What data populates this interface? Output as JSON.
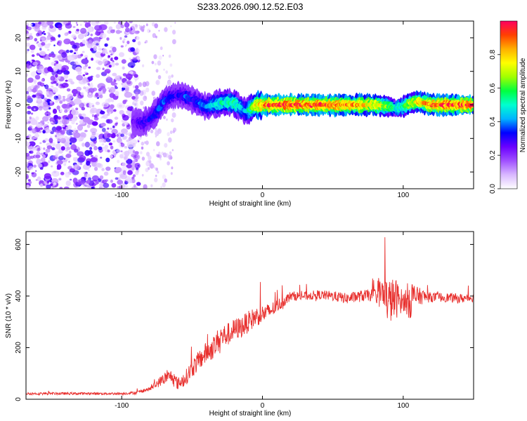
{
  "title": "S233.2026.090.12.52.E03",
  "chart_data": [
    {
      "type": "heatmap",
      "name": "spectrogram",
      "xlabel": "Height of straight line (km)",
      "ylabel": "Frequency (Hz)",
      "xlim": [
        -168,
        150
      ],
      "ylim": [
        -25,
        25
      ],
      "xticks": [
        "-100",
        "0",
        "100"
      ],
      "xtick_values": [
        -100,
        0,
        100
      ],
      "yticks": [
        "-20",
        "-10",
        "0",
        "10",
        "20"
      ],
      "ytick_values": [
        -20,
        -10,
        0,
        10,
        20
      ],
      "colorbar": {
        "label": "Normalized spectral amplitude",
        "range": [
          0,
          1
        ],
        "ticks": [
          "0.0",
          "0.2",
          "0.4",
          "0.6",
          "0.8"
        ],
        "tick_values": [
          0,
          0.2,
          0.4,
          0.6,
          0.8
        ],
        "colors": [
          "#ffffff",
          "#d9b8ff",
          "#a050ff",
          "#6a00ff",
          "#0000ff",
          "#00b4ff",
          "#00ffd0",
          "#00ff40",
          "#a0ff00",
          "#ffff00",
          "#ffb000",
          "#ff4000",
          "#ff0060"
        ]
      },
      "ridge": {
        "description": "frequency of dominant signal along height",
        "x": [
          -90,
          -85,
          -80,
          -75,
          -70,
          -65,
          -60,
          -55,
          -50,
          -45,
          -40,
          -35,
          -30,
          -25,
          -20,
          -15,
          -12,
          -8,
          -5,
          0,
          10,
          20,
          30,
          40,
          50,
          60,
          70,
          80,
          90,
          95,
          100,
          105,
          110,
          115,
          120,
          130,
          140,
          150
        ],
        "y": [
          -5,
          -5.5,
          -4,
          -2,
          1,
          2.5,
          3,
          2.5,
          1.5,
          0.5,
          -0.5,
          0,
          0.5,
          0.8,
          0.5,
          -1,
          -2,
          -1,
          0,
          0,
          0,
          0,
          0,
          0,
          0,
          0,
          0,
          0,
          -0.5,
          -1,
          -0.5,
          0.5,
          1,
          0.5,
          0,
          0,
          0,
          0
        ],
        "amplitude": [
          0.25,
          0.3,
          0.3,
          0.35,
          0.35,
          0.3,
          0.3,
          0.35,
          0.3,
          0.35,
          0.4,
          0.45,
          0.5,
          0.5,
          0.55,
          0.45,
          0.4,
          0.6,
          0.75,
          0.85,
          0.95,
          0.95,
          0.9,
          0.9,
          0.9,
          0.85,
          0.8,
          0.75,
          0.6,
          0.5,
          0.55,
          0.7,
          0.75,
          0.8,
          0.85,
          0.9,
          0.9,
          0.9
        ]
      }
    },
    {
      "type": "line",
      "name": "snr",
      "xlabel": "Height of straight line (km)",
      "ylabel": "SNR (10 * v/v)",
      "xlim": [
        -168,
        150
      ],
      "ylim": [
        0,
        650
      ],
      "xticks": [
        "-100",
        "0",
        "100"
      ],
      "xtick_values": [
        -100,
        0,
        100
      ],
      "yticks": [
        "0",
        "200",
        "400",
        "600"
      ],
      "ytick_values": [
        0,
        200,
        400,
        600
      ],
      "color": "#e8302e",
      "envelope": {
        "x": [
          -168,
          -150,
          -120,
          -100,
          -90,
          -80,
          -75,
          -70,
          -65,
          -60,
          -55,
          -50,
          -45,
          -40,
          -35,
          -30,
          -25,
          -20,
          -15,
          -10,
          -5,
          0,
          5,
          10,
          15,
          20,
          30,
          40,
          50,
          60,
          70,
          80,
          85,
          90,
          95,
          100,
          105,
          110,
          120,
          130,
          140,
          150
        ],
        "y": [
          22,
          22,
          22,
          22,
          25,
          40,
          60,
          80,
          90,
          60,
          80,
          120,
          150,
          180,
          200,
          240,
          250,
          270,
          280,
          300,
          320,
          330,
          340,
          360,
          380,
          400,
          400,
          405,
          400,
          390,
          400,
          405,
          410,
          380,
          390,
          380,
          390,
          400,
          395,
          395,
          390,
          395
        ]
      },
      "noise_amplitude": {
        "x": [
          -168,
          -100,
          -80,
          -70,
          -60,
          -50,
          -40,
          -30,
          -20,
          -10,
          0,
          20,
          40,
          80,
          85,
          90,
          95,
          100,
          105,
          110,
          120,
          150
        ],
        "y": [
          8,
          8,
          12,
          40,
          40,
          60,
          70,
          80,
          70,
          70,
          60,
          30,
          30,
          40,
          120,
          150,
          130,
          60,
          140,
          60,
          30,
          30
        ]
      }
    }
  ]
}
